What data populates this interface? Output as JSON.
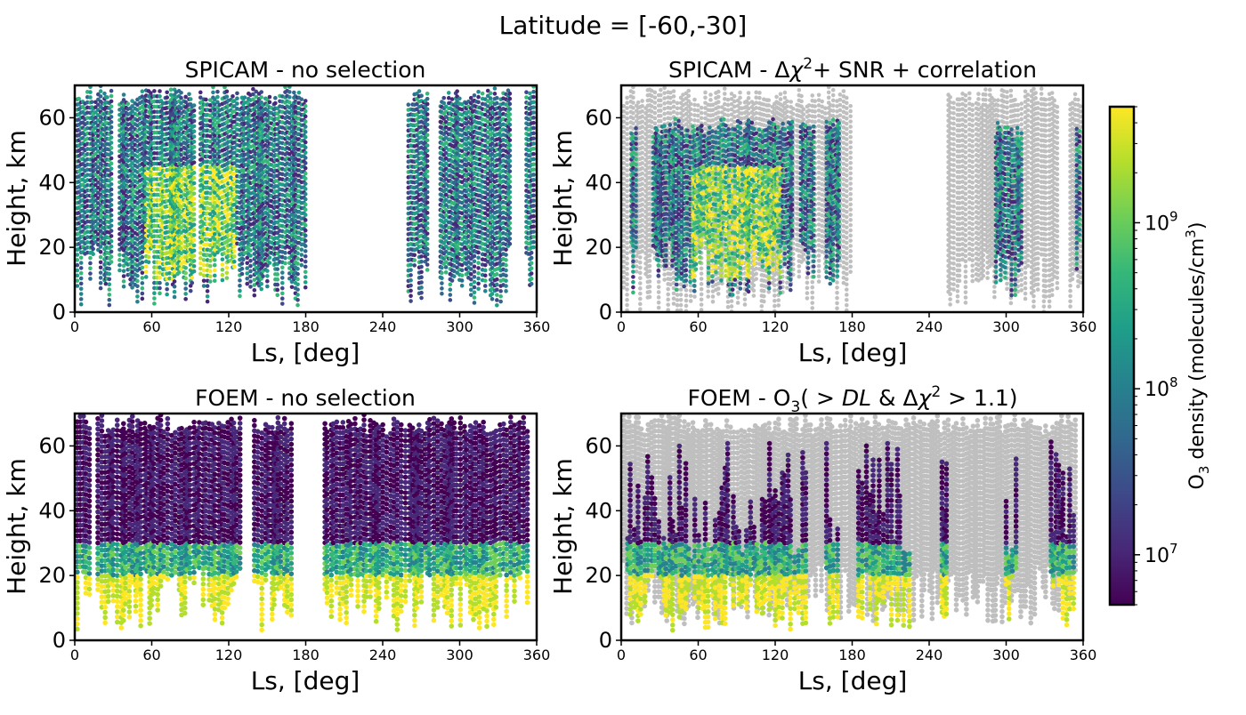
{
  "suptitle": "Latitude = [-60,-30]",
  "colorbar": {
    "label_main": "O",
    "label_sub": "3",
    "label_rest": " density (molecules/cm",
    "label_sup": "3",
    "label_close": ")",
    "scale": "log",
    "range": [
      5000000,
      5000000000
    ],
    "ticks": [
      {
        "value": 10000000,
        "base": "10",
        "exp": "7"
      },
      {
        "value": 100000000,
        "base": "10",
        "exp": "8"
      },
      {
        "value": 1000000000,
        "base": "10",
        "exp": "9"
      }
    ],
    "colors": [
      "#440154",
      "#482878",
      "#3e4989",
      "#31688e",
      "#26828e",
      "#1f9e89",
      "#35b779",
      "#6ece58",
      "#b5de2b",
      "#fde725"
    ]
  },
  "excluded_color": "#bfbfbf",
  "chart_data": [
    {
      "type": "scatter",
      "panel": "top-left",
      "title": "SPICAM - no selection",
      "xlabel": "Ls, [deg]",
      "ylabel": "Height, km",
      "xlim": [
        0,
        360
      ],
      "ylim": [
        0,
        70
      ],
      "xticks": [
        0,
        60,
        120,
        180,
        240,
        300,
        360
      ],
      "yticks": [
        0,
        20,
        40,
        60
      ],
      "series": [
        {
          "kind": "selected",
          "ls_ranges": [
            [
              2,
              30
            ],
            [
              35,
              95
            ],
            [
              98,
              180
            ],
            [
              260,
              275
            ],
            [
              285,
              340
            ],
            [
              352,
              358
            ]
          ],
          "y_range": [
            2,
            70
          ]
        }
      ]
    },
    {
      "type": "scatter",
      "panel": "top-right",
      "title_parts": {
        "a": "SPICAM - Δ",
        "chi": "χ",
        "sup": "2",
        "b": "+ SNR + correlation"
      },
      "xlabel": "Ls, [deg]",
      "ylabel": "Height, km",
      "xlim": [
        0,
        360
      ],
      "ylim": [
        0,
        70
      ],
      "xticks": [
        0,
        60,
        120,
        180,
        240,
        300,
        360
      ],
      "yticks": [
        0,
        20,
        40,
        60
      ],
      "series": [
        {
          "kind": "excluded",
          "ls_ranges": [
            [
              2,
              180
            ],
            [
              255,
              340
            ],
            [
              350,
              358
            ]
          ],
          "y_range": [
            0,
            70
          ]
        },
        {
          "kind": "selected",
          "ls_ranges": [
            [
              8,
              12
            ],
            [
              25,
              135
            ],
            [
              140,
              150
            ],
            [
              160,
              170
            ],
            [
              292,
              312
            ],
            [
              355,
              358
            ]
          ],
          "y_range": [
            5,
            60
          ]
        }
      ]
    },
    {
      "type": "scatter",
      "panel": "bottom-left",
      "title": "FOEM - no selection",
      "xlabel": "Ls, [deg]",
      "ylabel": "Height, km",
      "xlim": [
        0,
        360
      ],
      "ylim": [
        0,
        70
      ],
      "xticks": [
        0,
        60,
        120,
        180,
        240,
        300,
        360
      ],
      "yticks": [
        0,
        20,
        40,
        60
      ],
      "series": [
        {
          "kind": "selected",
          "ls_ranges": [
            [
              2,
              12
            ],
            [
              18,
              130
            ],
            [
              140,
              170
            ],
            [
              195,
              355
            ]
          ],
          "y_range": [
            3,
            70
          ]
        }
      ]
    },
    {
      "type": "scatter",
      "panel": "bottom-right",
      "title_parts": {
        "a": "FOEM - O",
        "sub": "3",
        "b": "(",
        "gt1": " > ",
        "dl": "DL",
        "amp": " & Δ",
        "chi": "χ",
        "sup": "2",
        "gt2": " > 1.1)"
      },
      "xlabel": "Ls, [deg]",
      "ylabel": "Height, km",
      "xlim": [
        0,
        360
      ],
      "ylim": [
        0,
        70
      ],
      "xticks": [
        0,
        60,
        120,
        180,
        240,
        300,
        360
      ],
      "yticks": [
        0,
        20,
        40,
        60
      ],
      "series": [
        {
          "kind": "excluded",
          "ls_ranges": [
            [
              2,
              355
            ]
          ],
          "y_range": [
            5,
            70
          ]
        },
        {
          "kind": "selected",
          "ls_ranges": [
            [
              5,
              145
            ],
            [
              160,
              170
            ],
            [
              185,
              225
            ],
            [
              250,
              255
            ],
            [
              300,
              310
            ],
            [
              335,
              355
            ]
          ],
          "y_range": [
            3,
            63
          ]
        }
      ]
    }
  ]
}
